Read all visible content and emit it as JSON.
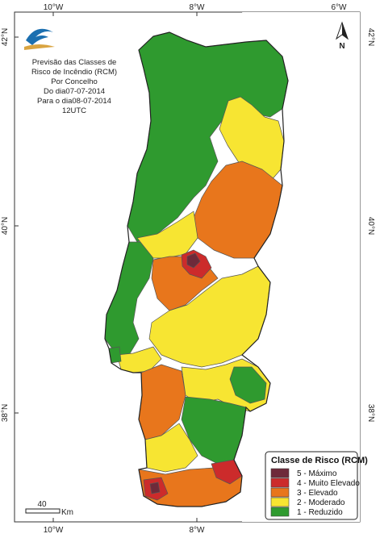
{
  "map": {
    "title_lines": [
      "Previsão das Classes de",
      "Risco de Incêndio (RCM)",
      "Por Concelho",
      "Do dia07-07-2014",
      "Para o dia08-07-2014",
      "12UTC"
    ],
    "top_ticks": [
      "10°W",
      "8°W",
      "6°W"
    ],
    "bottom_ticks": [
      "10°W",
      "8°W"
    ],
    "left_ticks": [
      "42°N",
      "40°N",
      "38°N"
    ],
    "right_ticks": [
      "42°N",
      "40°N",
      "38°N"
    ],
    "north_label": "N",
    "scale": {
      "value": "40",
      "unit": "Km"
    },
    "legend": {
      "title": "Classe de Risco (RCM)",
      "items": [
        {
          "label": "5 - Máximo",
          "color": "#6e2a3a"
        },
        {
          "label": "4 - Muito Elevado",
          "color": "#cc2b2b"
        },
        {
          "label": "3 - Elevado",
          "color": "#e8761c"
        },
        {
          "label": "2 - Moderado",
          "color": "#f7e532"
        },
        {
          "label": "1 - Reduzido",
          "color": "#2f9a2f"
        }
      ]
    },
    "colors": {
      "reduzido": "#2f9a2f",
      "moderado": "#f7e532",
      "elevado": "#e8761c",
      "muito_elevado": "#cc2b2b",
      "maximo": "#6e2a3a",
      "spain": "#ffffff",
      "border": "#3a3a3a",
      "logo_blue": "#1b6fb0",
      "logo_gold": "#d9a441"
    }
  }
}
